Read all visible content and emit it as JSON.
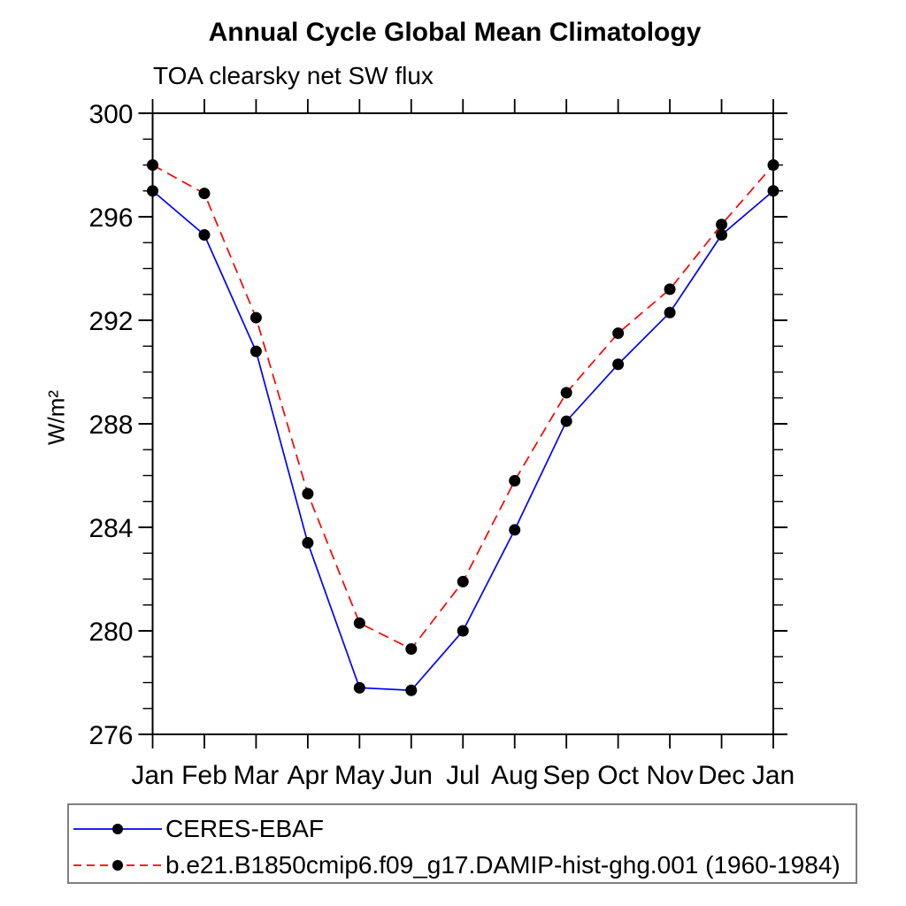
{
  "page": {
    "background_color": "#ffffff",
    "axis_color": "#000000",
    "legend_border_color": "#808080"
  },
  "chart_data": {
    "type": "line",
    "title": "Annual Cycle Global Mean Climatology",
    "subtitle": "TOA clearsky net SW flux",
    "ylabel": "W/m²",
    "categories": [
      "Jan",
      "Feb",
      "Mar",
      "Apr",
      "May",
      "Jun",
      "Jul",
      "Aug",
      "Sep",
      "Oct",
      "Nov",
      "Dec",
      "Jan"
    ],
    "series": [
      {
        "name": "CERES-EBAF",
        "color": "#0000ff",
        "line_style": "solid",
        "marker": "filled-circle",
        "marker_color": "#000000",
        "values": [
          297.0,
          295.3,
          290.8,
          283.4,
          277.8,
          277.7,
          280.0,
          283.9,
          288.1,
          290.3,
          292.3,
          295.3,
          297.0
        ]
      },
      {
        "name": "b.e21.B1850cmip6.f09_g17.DAMIP-hist-ghg.001 (1960-1984)",
        "color": "#ff0000",
        "line_style": "dashed",
        "marker": "filled-circle",
        "marker_color": "#000000",
        "values": [
          298.0,
          296.9,
          292.1,
          285.3,
          280.3,
          279.3,
          281.9,
          285.8,
          289.2,
          291.5,
          293.2,
          295.7,
          298.0
        ]
      }
    ],
    "ylim": [
      276,
      300
    ],
    "yticks_major": [
      276,
      280,
      284,
      288,
      292,
      296,
      300
    ],
    "ytick_minor_step": 1,
    "grid": false,
    "tick_direction": "out",
    "legend_position": "bottom"
  }
}
